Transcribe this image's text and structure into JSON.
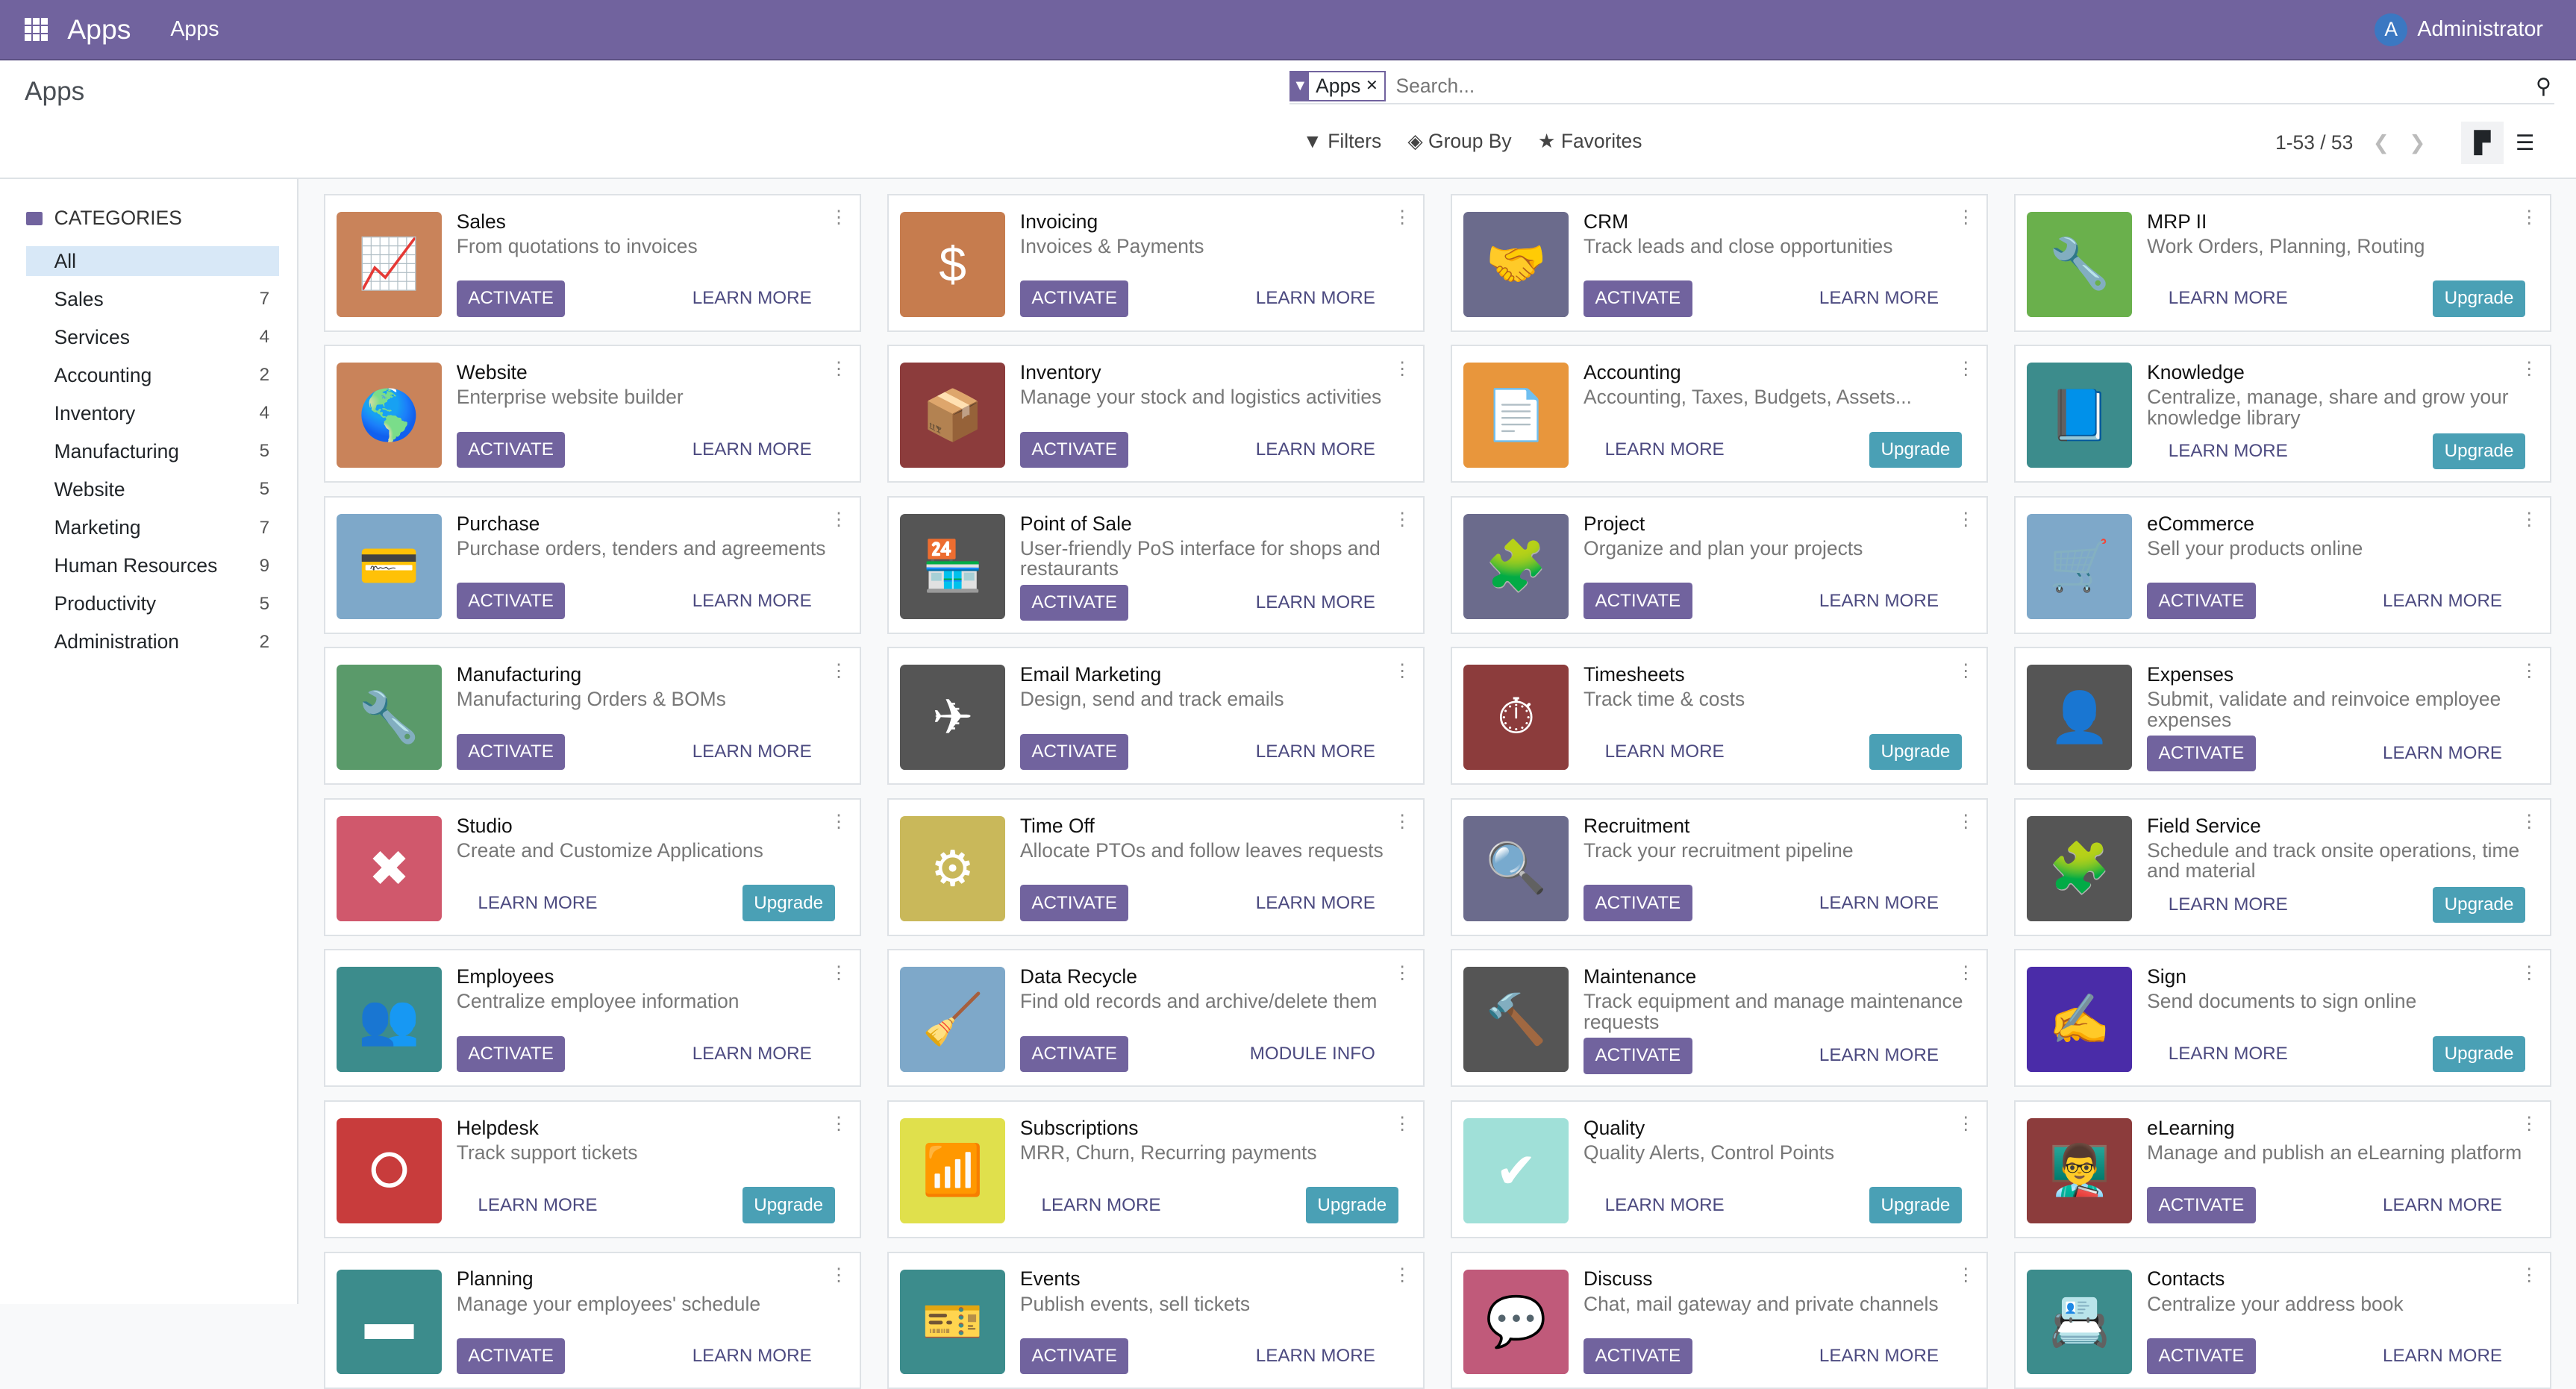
{
  "topbar": {
    "brand": "Apps",
    "menu": "Apps",
    "user": "Administrator",
    "user_initial": "A"
  },
  "control": {
    "title": "Apps",
    "facet": "Apps",
    "search_placeholder": "Search...",
    "filters": "Filters",
    "group_by": "Group By",
    "favorites": "Favorites",
    "pager": "1-53 / 53"
  },
  "sidebar": {
    "header": "CATEGORIES",
    "items": [
      {
        "label": "All",
        "count": ""
      },
      {
        "label": "Sales",
        "count": "7"
      },
      {
        "label": "Services",
        "count": "4"
      },
      {
        "label": "Accounting",
        "count": "2"
      },
      {
        "label": "Inventory",
        "count": "4"
      },
      {
        "label": "Manufacturing",
        "count": "5"
      },
      {
        "label": "Website",
        "count": "5"
      },
      {
        "label": "Marketing",
        "count": "7"
      },
      {
        "label": "Human Resources",
        "count": "9"
      },
      {
        "label": "Productivity",
        "count": "5"
      },
      {
        "label": "Administration",
        "count": "2"
      }
    ]
  },
  "labels": {
    "activate": "ACTIVATE",
    "learn_more": "LEARN MORE",
    "module_info": "MODULE INFO",
    "upgrade": "Upgrade"
  },
  "colors": {
    "accent": "#71639e",
    "upgrade": "#4aa0b5"
  },
  "apps": [
    {
      "name": "Sales",
      "desc": "From quotations to invoices",
      "mode": "activate",
      "icon": "chart-line-icon",
      "glyph": "📈",
      "color": "#c9835a"
    },
    {
      "name": "Invoicing",
      "desc": "Invoices & Payments",
      "mode": "activate",
      "icon": "invoice-icon",
      "glyph": "$",
      "color": "#c67c4e"
    },
    {
      "name": "CRM",
      "desc": "Track leads and close opportunities",
      "mode": "activate",
      "icon": "handshake-icon",
      "glyph": "🤝",
      "color": "#6b6b8c"
    },
    {
      "name": "MRP II",
      "desc": "Work Orders, Planning, Routing",
      "mode": "upgrade",
      "icon": "wrench-icon",
      "glyph": "🔧",
      "color": "#6ab04c"
    },
    {
      "name": "Website",
      "desc": "Enterprise website builder",
      "mode": "activate",
      "icon": "globe-icon",
      "glyph": "🌎",
      "color": "#c9835a"
    },
    {
      "name": "Inventory",
      "desc": "Manage your stock and logistics activities",
      "mode": "activate",
      "icon": "box-icon",
      "glyph": "📦",
      "color": "#8c3c3c"
    },
    {
      "name": "Accounting",
      "desc": "Accounting, Taxes, Budgets, Assets...",
      "mode": "upgrade",
      "icon": "document-icon",
      "glyph": "📄",
      "color": "#e8963c"
    },
    {
      "name": "Knowledge",
      "desc": "Centralize, manage, share and grow your knowledge library",
      "mode": "upgrade",
      "icon": "book-icon",
      "glyph": "📘",
      "color": "#3c8c8c"
    },
    {
      "name": "Purchase",
      "desc": "Purchase orders, tenders and agreements",
      "mode": "activate",
      "icon": "credit-card-icon",
      "glyph": "💳",
      "color": "#7ea8c9"
    },
    {
      "name": "Point of Sale",
      "desc": "User-friendly PoS interface for shops and restaurants",
      "mode": "activate",
      "icon": "shop-icon",
      "glyph": "🏪",
      "color": "#555555"
    },
    {
      "name": "Project",
      "desc": "Organize and plan your projects",
      "mode": "activate",
      "icon": "puzzle-icon",
      "glyph": "🧩",
      "color": "#6b6b8c"
    },
    {
      "name": "eCommerce",
      "desc": "Sell your products online",
      "mode": "activate",
      "icon": "cart-icon",
      "glyph": "🛒",
      "color": "#7ea8c9"
    },
    {
      "name": "Manufacturing",
      "desc": "Manufacturing Orders & BOMs",
      "mode": "activate",
      "icon": "wrench-icon",
      "glyph": "🔧",
      "color": "#5a9a6a"
    },
    {
      "name": "Email Marketing",
      "desc": "Design, send and track emails",
      "mode": "activate",
      "icon": "paper-plane-icon",
      "glyph": "✈",
      "color": "#555555"
    },
    {
      "name": "Timesheets",
      "desc": "Track time & costs",
      "mode": "upgrade",
      "icon": "stopwatch-icon",
      "glyph": "⏱",
      "color": "#8c3c3c"
    },
    {
      "name": "Expenses",
      "desc": "Submit, validate and reinvoice employee expenses",
      "mode": "activate",
      "icon": "user-dollar-icon",
      "glyph": "👤",
      "color": "#555555"
    },
    {
      "name": "Studio",
      "desc": "Create and Customize Applications",
      "mode": "upgrade",
      "icon": "tools-icon",
      "glyph": "✖",
      "color": "#d0586c"
    },
    {
      "name": "Time Off",
      "desc": "Allocate PTOs and follow leaves requests",
      "mode": "activate",
      "icon": "user-gear-icon",
      "glyph": "⚙",
      "color": "#c9b85a"
    },
    {
      "name": "Recruitment",
      "desc": "Track your recruitment pipeline",
      "mode": "activate",
      "icon": "magnifier-icon",
      "glyph": "🔍",
      "color": "#6b6b8c"
    },
    {
      "name": "Field Service",
      "desc": "Schedule and track onsite operations, time and material",
      "mode": "upgrade",
      "icon": "field-service-icon",
      "glyph": "🧩",
      "color": "#555555"
    },
    {
      "name": "Employees",
      "desc": "Centralize employee information",
      "mode": "activate",
      "icon": "users-icon",
      "glyph": "👥",
      "color": "#3c8c8c"
    },
    {
      "name": "Data Recycle",
      "desc": "Find old records and archive/delete them",
      "mode": "info",
      "icon": "broom-icon",
      "glyph": "🧹",
      "color": "#7ea8c9"
    },
    {
      "name": "Maintenance",
      "desc": "Track equipment and manage maintenance requests",
      "mode": "activate",
      "icon": "hammer-icon",
      "glyph": "🔨",
      "color": "#555555"
    },
    {
      "name": "Sign",
      "desc": "Send documents to sign online",
      "mode": "upgrade",
      "icon": "sign-icon",
      "glyph": "✍",
      "color": "#4a2ca8"
    },
    {
      "name": "Helpdesk",
      "desc": "Track support tickets",
      "mode": "upgrade",
      "icon": "lifebuoy-icon",
      "glyph": "⭘",
      "color": "#c83c3c"
    },
    {
      "name": "Subscriptions",
      "desc": "MRR, Churn, Recurring payments",
      "mode": "upgrade",
      "icon": "rss-icon",
      "glyph": "📶",
      "color": "#e0e04c"
    },
    {
      "name": "Quality",
      "desc": "Quality Alerts, Control Points",
      "mode": "upgrade",
      "icon": "quality-icon",
      "glyph": "✔",
      "color": "#a0e0d8"
    },
    {
      "name": "eLearning",
      "desc": "Manage and publish an eLearning platform",
      "mode": "activate",
      "icon": "presentation-icon",
      "glyph": "👨‍🏫",
      "color": "#8c3c3c"
    },
    {
      "name": "Planning",
      "desc": "Manage your employees' schedule",
      "mode": "activate",
      "icon": "planning-icon",
      "glyph": "▬",
      "color": "#3c8c8c"
    },
    {
      "name": "Events",
      "desc": "Publish events, sell tickets",
      "mode": "activate",
      "icon": "ticket-icon",
      "glyph": "🎫",
      "color": "#3c8c8c"
    },
    {
      "name": "Discuss",
      "desc": "Chat, mail gateway and private channels",
      "mode": "activate",
      "icon": "chat-icon",
      "glyph": "💬",
      "color": "#c05a7a"
    },
    {
      "name": "Contacts",
      "desc": "Centralize your address book",
      "mode": "activate",
      "icon": "contacts-icon",
      "glyph": "📇",
      "color": "#3c8c8c"
    }
  ]
}
